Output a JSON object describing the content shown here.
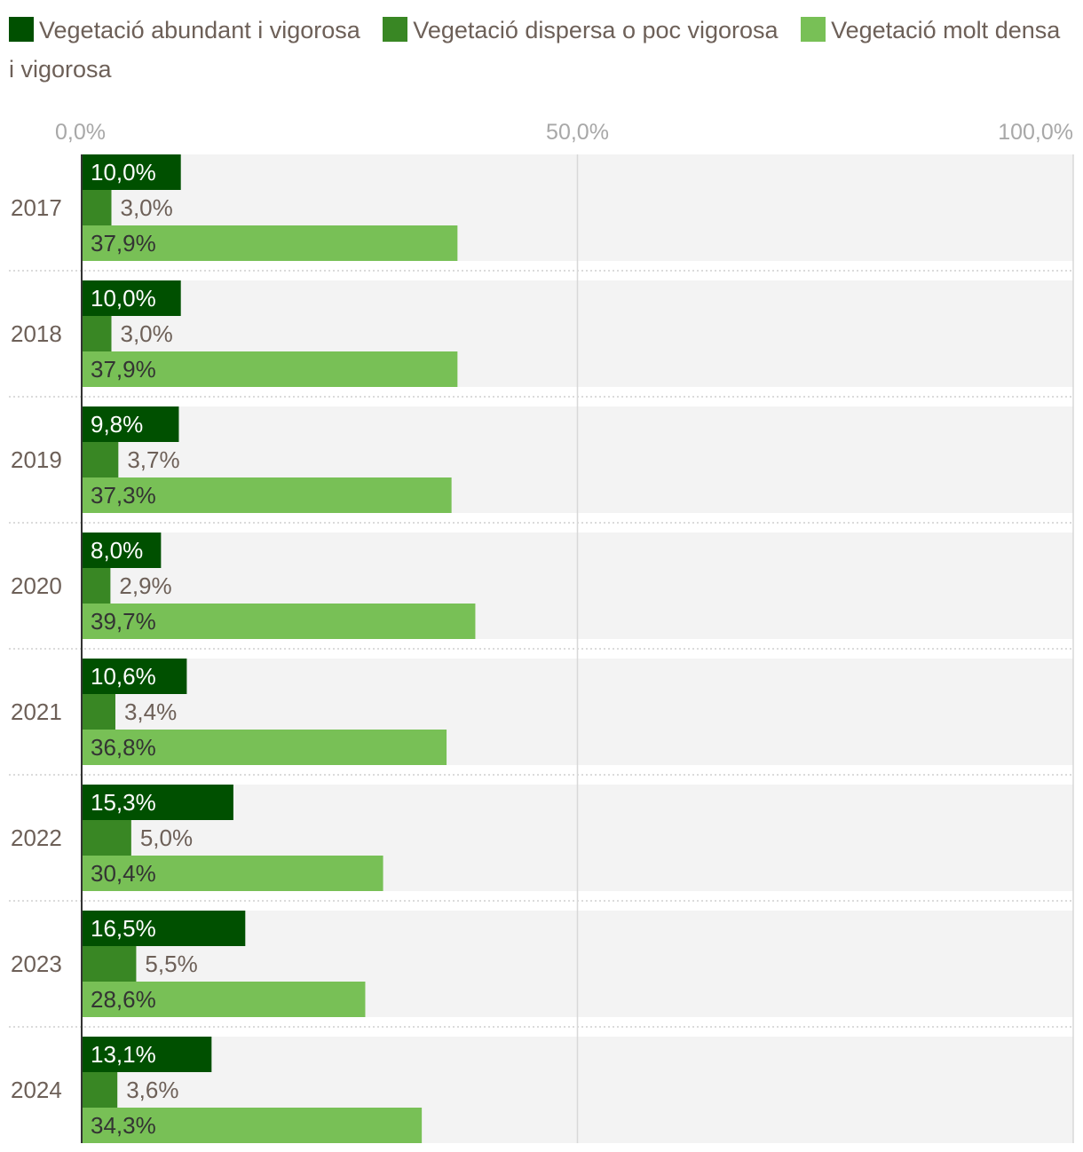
{
  "chart_data": {
    "type": "bar",
    "orientation": "horizontal",
    "categories": [
      "2017",
      "2018",
      "2019",
      "2020",
      "2021",
      "2022",
      "2023",
      "2024"
    ],
    "series": [
      {
        "name": "Vegetació abundant i vigorosa",
        "color": "#005000",
        "values": [
          10.0,
          10.0,
          9.8,
          8.0,
          10.6,
          15.3,
          16.5,
          13.1
        ],
        "labels": [
          "10,0%",
          "10,0%",
          "9,8%",
          "8,0%",
          "10,6%",
          "15,3%",
          "16,5%",
          "13,1%"
        ]
      },
      {
        "name": "Vegetació dispersa o poc vigorosa",
        "color": "#398724",
        "values": [
          3.0,
          3.0,
          3.7,
          2.9,
          3.4,
          5.0,
          5.5,
          3.6
        ],
        "labels": [
          "3,0%",
          "3,0%",
          "3,7%",
          "2,9%",
          "3,4%",
          "5,0%",
          "5,5%",
          "3,6%"
        ]
      },
      {
        "name": "Vegetació molt densa i vigorosa",
        "color": "#78c056",
        "values": [
          37.9,
          37.9,
          37.3,
          39.7,
          36.8,
          30.4,
          28.6,
          34.3
        ],
        "labels": [
          "37,9%",
          "37,9%",
          "37,3%",
          "39,7%",
          "36,8%",
          "30,4%",
          "28,6%",
          "34,3%"
        ]
      }
    ],
    "xlim": [
      0,
      100
    ],
    "xticks": [
      0,
      50,
      100
    ],
    "xtick_labels": [
      "0,0%",
      "50,0%",
      "100,0%"
    ],
    "title": "",
    "xlabel": "",
    "ylabel": "",
    "legend_position": "top",
    "grid": true
  },
  "colors": {
    "row_background": "#f3f3f3",
    "gridline": "#d8d8d8",
    "text": "#6d6058",
    "tick_text": "#a8a8a8",
    "label_on_dark": "#ffffff",
    "label_on_light": "#333333"
  }
}
